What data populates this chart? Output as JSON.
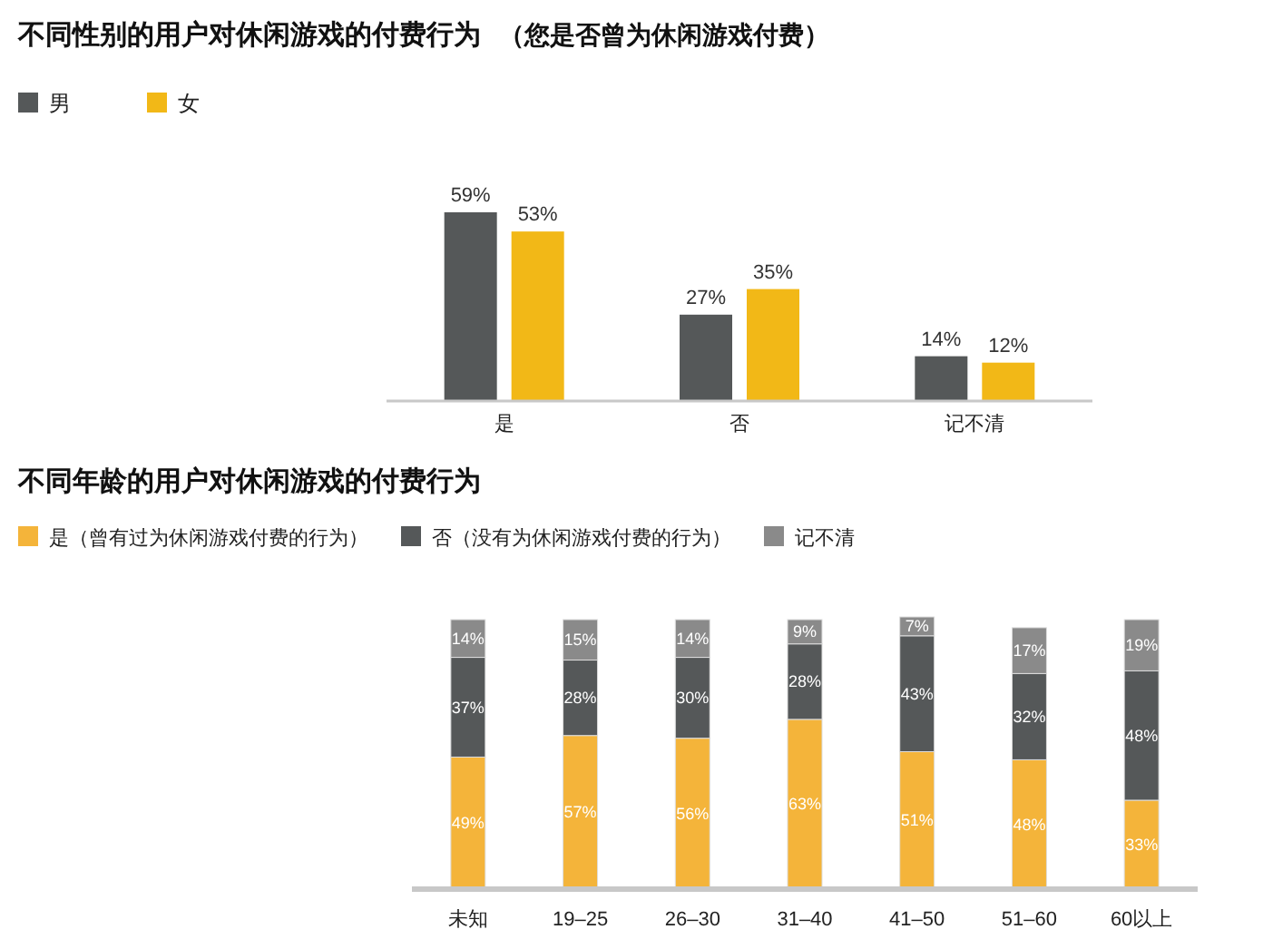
{
  "chart_data": [
    {
      "type": "bar",
      "title": "不同性别的用户对休闲游戏的付费行为",
      "subtitle": "（您是否曾为休闲游戏付费）",
      "categories": [
        "是",
        "否",
        "记不清"
      ],
      "legend": "top left",
      "series": [
        {
          "name": "男",
          "color": "#555859",
          "values": [
            59,
            27,
            14
          ],
          "value_labels": [
            "59%",
            "27%",
            "14%"
          ]
        },
        {
          "name": "女",
          "color": "#f2b817",
          "values": [
            53,
            35,
            12
          ],
          "value_labels": [
            "53%",
            "35%",
            "12%"
          ]
        }
      ]
    },
    {
      "type": "bar",
      "stacked": true,
      "title": "不同年龄的用户对休闲游戏的付费行为",
      "categories": [
        "未知",
        "19–25",
        "26–30",
        "31–40",
        "41–50",
        "51–60",
        "60以上"
      ],
      "legend": "top left",
      "series": [
        {
          "name": "是（曾有过为休闲游戏付费的行为）",
          "color": "#f4b43a",
          "values": [
            49,
            57,
            56,
            63,
            51,
            48,
            33
          ],
          "value_labels": [
            "49%",
            "57%",
            "56%",
            "63%",
            "51%",
            "48%",
            "33%"
          ]
        },
        {
          "name": "否（没有为休闲游戏付费的行为）",
          "color": "#555859",
          "values": [
            37,
            28,
            30,
            28,
            43,
            32,
            48
          ],
          "value_labels": [
            "37%",
            "28%",
            "30%",
            "28%",
            "43%",
            "32%",
            "48%"
          ]
        },
        {
          "name": "记不清",
          "color": "#8a8a8a",
          "values": [
            14,
            15,
            14,
            9,
            7,
            17,
            19
          ],
          "value_labels": [
            "14%",
            "15%",
            "14%",
            "9%",
            "7%",
            "17%",
            "19%"
          ]
        }
      ]
    }
  ]
}
